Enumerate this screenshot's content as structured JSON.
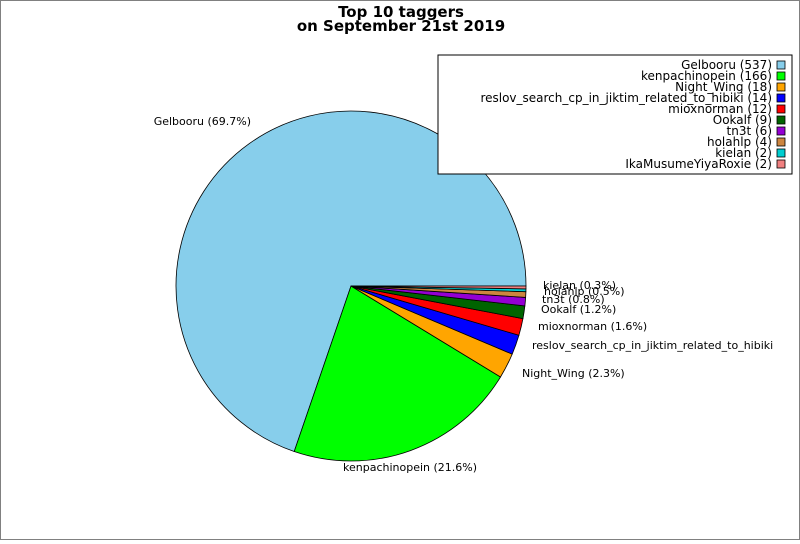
{
  "chart_data": {
    "type": "pie",
    "title_line1": "Top 10 taggers",
    "title_line2": "on September 21st 2019",
    "slices": [
      {
        "label": "Gelbooru",
        "value": 537,
        "percent": "69.7%",
        "color": "#87ceeb",
        "pie_label": "Gelbooru (69.7%)",
        "legend_label": "Gelbooru (537)"
      },
      {
        "label": "kenpachinopein",
        "value": 166,
        "percent": "21.6%",
        "color": "#00ff00",
        "pie_label": "kenpachinopein (21.6%)",
        "legend_label": "kenpachinopein (166)"
      },
      {
        "label": "Night_Wing",
        "value": 18,
        "percent": "2.3%",
        "color": "#ffa500",
        "pie_label": "Night_Wing (2.3%)",
        "legend_label": "Night_Wing (18)"
      },
      {
        "label": "reslov_search_cp_in_jiktim_related_to_hibiki",
        "value": 14,
        "percent": "1.8%",
        "color": "#0000ff",
        "pie_label": "reslov_search_cp_in_jiktim_related_to_hibiki",
        "legend_label": "reslov_search_cp_in_jiktim_related_to_hibiki (14)"
      },
      {
        "label": "mioxnorman",
        "value": 12,
        "percent": "1.6%",
        "color": "#ff0000",
        "pie_label": "mioxnorman (1.6%)",
        "legend_label": "mioxnorman (12)"
      },
      {
        "label": "Ookalf",
        "value": 9,
        "percent": "1.2%",
        "color": "#006400",
        "pie_label": "Ookalf (1.2%)",
        "legend_label": "Ookalf (9)"
      },
      {
        "label": "tn3t",
        "value": 6,
        "percent": "0.8%",
        "color": "#9400d3",
        "pie_label": "tn3t (0.8%)",
        "legend_label": "tn3t (6)"
      },
      {
        "label": "holahlp",
        "value": 4,
        "percent": "0.5%",
        "color": "#cd853f",
        "pie_label": "holahlp (0.5%)",
        "legend_label": "holahlp (4)"
      },
      {
        "label": "kielan",
        "value": 2,
        "percent": "0.3%",
        "color": "#00ced1",
        "pie_label": "kielan (0.3%)",
        "legend_label": "kielan (2)"
      },
      {
        "label": "IkaMusumeYiyaRoxie",
        "value": 2,
        "percent": "0.3%",
        "color": "#f08080",
        "pie_label": "",
        "legend_label": "IkaMusumeYiyaRoxie (2)"
      }
    ],
    "legend_position": "top-right"
  }
}
